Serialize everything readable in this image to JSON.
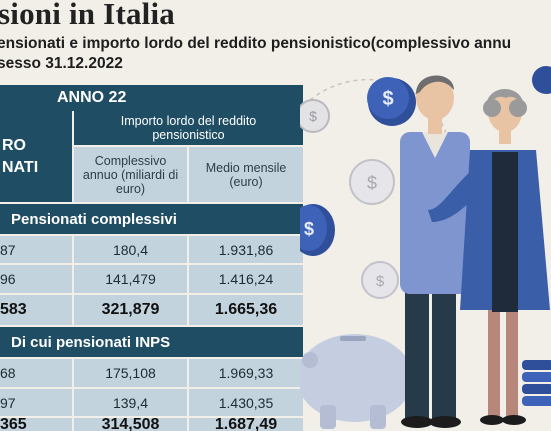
{
  "title": "sioni in Italia",
  "subtitle": {
    "line1": "ensionati e importo lordo del reddito pensionistico(complessivo annu",
    "line2": "sesso 31.12.2022"
  },
  "table": {
    "year_label": "ANNO 22",
    "left_header": {
      "line1": "RO",
      "line2": "NATI"
    },
    "group_header": "Importo lordo del reddito pensionistico",
    "col1_header": "Complessivo annuo (miliardi di euro)",
    "col2_header": "Medio mensile (euro)",
    "section1_label": "Pensionati complessivi",
    "section2_label": "Di cui pensionati INPS",
    "section1_rows": [
      {
        "left": "87",
        "c1": "180,4",
        "c2": "1.931,86"
      },
      {
        "left": "96",
        "c1": "141,479",
        "c2": "1.416,24"
      },
      {
        "left": "583",
        "c1": "321,879",
        "c2": "1.665,36"
      }
    ],
    "section2_rows": [
      {
        "left": "68",
        "c1": "175,108",
        "c2": "1.969,33"
      },
      {
        "left": "97",
        "c1": "139,4",
        "c2": "1.430,35"
      },
      {
        "left": "365",
        "c1": "314,508",
        "c2": "1.687,49"
      }
    ]
  },
  "colors": {
    "band": "#1f4d63",
    "light_cell": "#c2d3dd",
    "coin": "#2f4f9b",
    "background": "#f2efe9"
  }
}
